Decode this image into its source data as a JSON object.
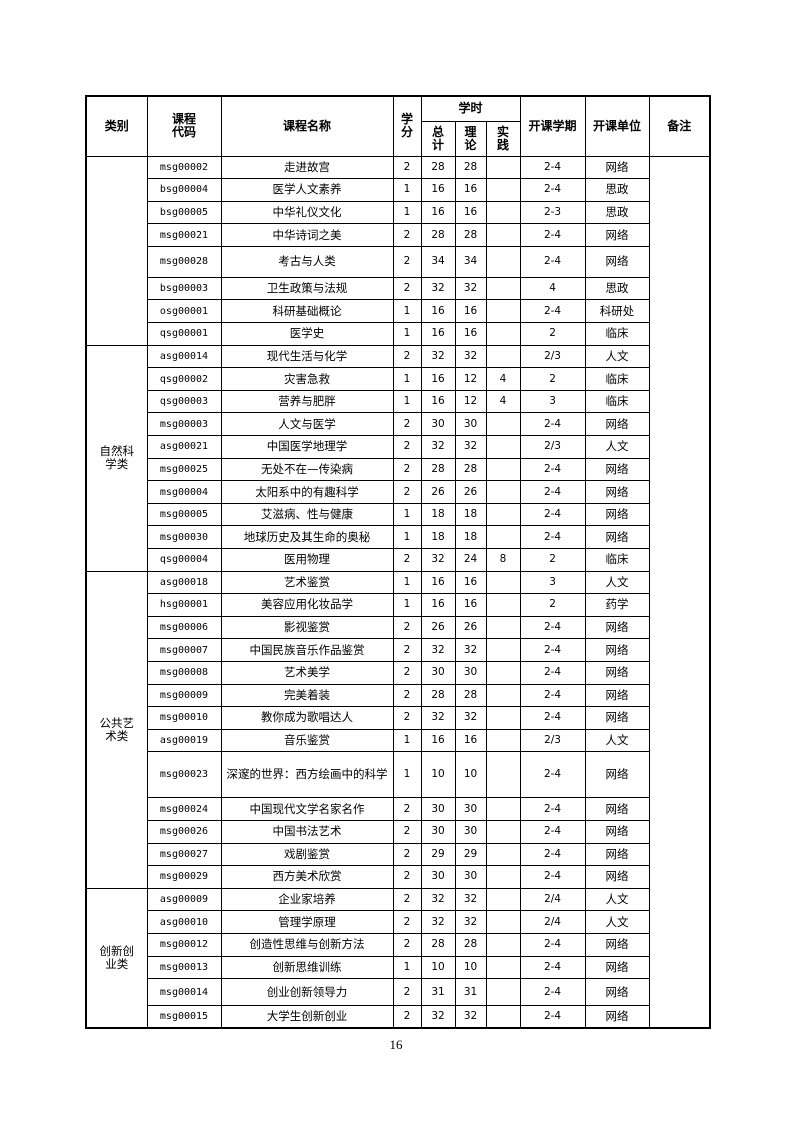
{
  "header": {
    "category": "类别",
    "code": "课程\n代码",
    "name": "课程名称",
    "credit": "学\n分",
    "hours": "学时",
    "total": "总\n计",
    "theory": "理\n论",
    "practice": "实\n践",
    "semester": "开课学期",
    "unit": "开课单位",
    "remark": "备注"
  },
  "groups": [
    {
      "category": "",
      "rows": [
        [
          "msg00002",
          "走进故宫",
          "2",
          "28",
          "28",
          "",
          "2-4",
          "网络"
        ],
        [
          "bsg00004",
          "医学人文素养",
          "1",
          "16",
          "16",
          "",
          "2-4",
          "思政"
        ],
        [
          "bsg00005",
          "中华礼仪文化",
          "1",
          "16",
          "16",
          "",
          "2-3",
          "思政"
        ],
        [
          "msg00021",
          "中华诗词之美",
          "2",
          "28",
          "28",
          "",
          "2-4",
          "网络"
        ],
        [
          "msg00028",
          "考古与人类",
          "2",
          "34",
          "34",
          "",
          "2-4",
          "网络"
        ],
        [
          "bsg00003",
          "卫生政策与法规",
          "2",
          "32",
          "32",
          "",
          "4",
          "思政"
        ],
        [
          "osg00001",
          "科研基础概论",
          "1",
          "16",
          "16",
          "",
          "2-4",
          "科研处"
        ],
        [
          "qsg00001",
          "医学史",
          "1",
          "16",
          "16",
          "",
          "2",
          "临床"
        ]
      ]
    },
    {
      "category": "自然科\n学类",
      "rows": [
        [
          "asg00014",
          "现代生活与化学",
          "2",
          "32",
          "32",
          "",
          "2/3",
          "人文"
        ],
        [
          "qsg00002",
          "灾害急救",
          "1",
          "16",
          "12",
          "4",
          "2",
          "临床"
        ],
        [
          "qsg00003",
          "营养与肥胖",
          "1",
          "16",
          "12",
          "4",
          "3",
          "临床"
        ],
        [
          "msg00003",
          "人文与医学",
          "2",
          "30",
          "30",
          "",
          "2-4",
          "网络"
        ],
        [
          "asg00021",
          "中国医学地理学",
          "2",
          "32",
          "32",
          "",
          "2/3",
          "人文"
        ],
        [
          "msg00025",
          "无处不在—传染病",
          "2",
          "28",
          "28",
          "",
          "2-4",
          "网络"
        ],
        [
          "msg00004",
          "太阳系中的有趣科学",
          "2",
          "26",
          "26",
          "",
          "2-4",
          "网络"
        ],
        [
          "msg00005",
          "艾滋病、性与健康",
          "1",
          "18",
          "18",
          "",
          "2-4",
          "网络"
        ],
        [
          "msg00030",
          "地球历史及其生命的奥秘",
          "1",
          "18",
          "18",
          "",
          "2-4",
          "网络"
        ],
        [
          "qsg00004",
          "医用物理",
          "2",
          "32",
          "24",
          "8",
          "2",
          "临床"
        ]
      ]
    },
    {
      "category": "公共艺\n术类",
      "rows": [
        [
          "asg00018",
          "艺术鉴赏",
          "1",
          "16",
          "16",
          "",
          "3",
          "人文"
        ],
        [
          "hsg00001",
          "美容应用化妆品学",
          "1",
          "16",
          "16",
          "",
          "2",
          "药学"
        ],
        [
          "msg00006",
          "影视鉴赏",
          "2",
          "26",
          "26",
          "",
          "2-4",
          "网络"
        ],
        [
          "msg00007",
          "中国民族音乐作品鉴赏",
          "2",
          "32",
          "32",
          "",
          "2-4",
          "网络"
        ],
        [
          "msg00008",
          "艺术美学",
          "2",
          "30",
          "30",
          "",
          "2-4",
          "网络"
        ],
        [
          "msg00009",
          "完美着装",
          "2",
          "28",
          "28",
          "",
          "2-4",
          "网络"
        ],
        [
          "msg00010",
          "教你成为歌唱达人",
          "2",
          "32",
          "32",
          "",
          "2-4",
          "网络"
        ],
        [
          "asg00019",
          "音乐鉴赏",
          "1",
          "16",
          "16",
          "",
          "2/3",
          "人文"
        ],
        [
          "msg00023",
          "深邃的世界：西方绘画中的科学",
          "1",
          "10",
          "10",
          "",
          "2-4",
          "网络"
        ],
        [
          "msg00024",
          "中国现代文学名家名作",
          "2",
          "30",
          "30",
          "",
          "2-4",
          "网络"
        ],
        [
          "msg00026",
          "中国书法艺术",
          "2",
          "30",
          "30",
          "",
          "2-4",
          "网络"
        ],
        [
          "msg00027",
          "戏剧鉴赏",
          "2",
          "29",
          "29",
          "",
          "2-4",
          "网络"
        ],
        [
          "msg00029",
          "西方美术欣赏",
          "2",
          "30",
          "30",
          "",
          "2-4",
          "网络"
        ]
      ]
    },
    {
      "category": "创新创\n业类",
      "rows": [
        [
          "asg00009",
          "企业家培养",
          "2",
          "32",
          "32",
          "",
          "2/4",
          "人文"
        ],
        [
          "asg00010",
          "管理学原理",
          "2",
          "32",
          "32",
          "",
          "2/4",
          "人文"
        ],
        [
          "msg00012",
          "创造性思维与创新方法",
          "2",
          "28",
          "28",
          "",
          "2-4",
          "网络"
        ],
        [
          "msg00013",
          "创新思维训练",
          "1",
          "10",
          "10",
          "",
          "2-4",
          "网络"
        ],
        [
          "msg00014",
          "创业创新领导力",
          "2",
          "31",
          "31",
          "",
          "2-4",
          "网络"
        ],
        [
          "msg00015",
          "大学生创新创业",
          "2",
          "32",
          "32",
          "",
          "2-4",
          "网络"
        ]
      ]
    }
  ],
  "page_number": "16"
}
